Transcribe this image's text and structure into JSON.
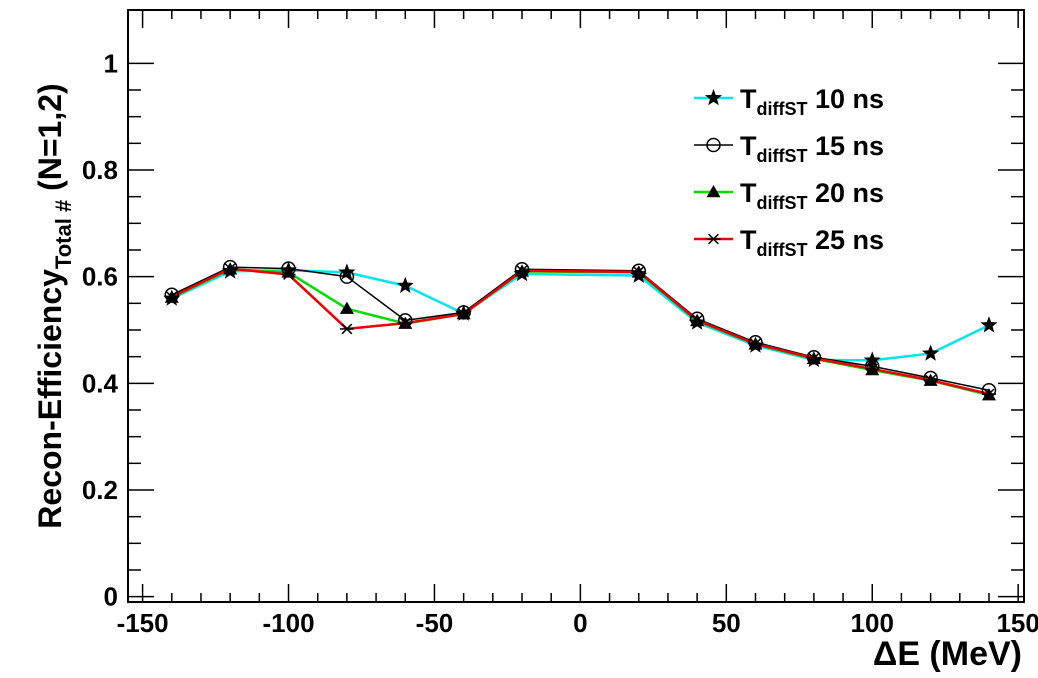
{
  "chart_data": {
    "type": "line",
    "xlabel": "ΔE (MeV)",
    "ylabel": {
      "main": "Recon-Efficiency",
      "sub": "Total #",
      "tail": " (N=1,2)"
    },
    "xlim": [
      -155,
      152
    ],
    "ylim": [
      -0.01,
      1.1
    ],
    "xticks": [
      -150,
      -100,
      -50,
      0,
      50,
      100,
      150
    ],
    "xtick_labels": [
      "-150",
      "-100",
      "-50",
      "0",
      "50",
      "100",
      "150"
    ],
    "yticks": [
      0,
      0.2,
      0.4,
      0.6,
      0.8,
      1
    ],
    "ytick_labels": [
      "0",
      "0.2",
      "0.4",
      "0.6",
      "0.8",
      "1"
    ],
    "x": [
      -140,
      -120,
      -100,
      -80,
      -60,
      -40,
      -20,
      20,
      40,
      60,
      80,
      100,
      120,
      140
    ],
    "grid": false,
    "legend_position": "top-right",
    "series": [
      {
        "name": "10 ns",
        "legend_main": "T",
        "legend_sub": "diffST",
        "legend_tail": " 10 ns",
        "color": "#00e5ee",
        "marker": "star",
        "values": [
          0.559,
          0.61,
          0.612,
          0.608,
          0.583,
          0.531,
          0.605,
          0.602,
          0.514,
          0.471,
          0.444,
          0.443,
          0.456,
          0.509
        ]
      },
      {
        "name": "15 ns",
        "legend_main": "T",
        "legend_sub": "diffST",
        "legend_tail": " 15 ns",
        "color": "#000000",
        "marker": "circle",
        "values": [
          0.566,
          0.618,
          0.615,
          0.6,
          0.518,
          0.533,
          0.614,
          0.611,
          0.521,
          0.477,
          0.449,
          0.432,
          0.41,
          0.387
        ]
      },
      {
        "name": "20 ns",
        "legend_main": "T",
        "legend_sub": "diffST",
        "legend_tail": " 20 ns",
        "color": "#00dd00",
        "marker": "triangle",
        "values": [
          0.561,
          0.614,
          0.608,
          0.54,
          0.512,
          0.53,
          0.61,
          0.608,
          0.517,
          0.473,
          0.446,
          0.425,
          0.405,
          0.378
        ]
      },
      {
        "name": "25 ns",
        "legend_main": "T",
        "legend_sub": "diffST",
        "legend_tail": " 25 ns",
        "color": "#ee0000",
        "marker": "asterisk",
        "values": [
          0.562,
          0.615,
          0.604,
          0.502,
          0.513,
          0.53,
          0.611,
          0.609,
          0.518,
          0.474,
          0.447,
          0.427,
          0.406,
          0.38
        ]
      }
    ]
  }
}
